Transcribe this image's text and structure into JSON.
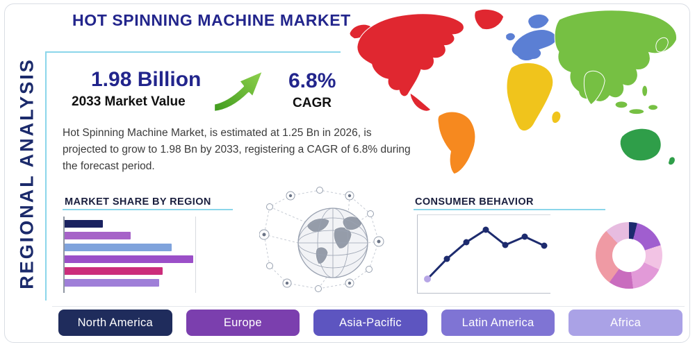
{
  "page": {
    "title": "HOT SPINNING MACHINE MARKET",
    "side_label": "REGIONAL ANALYSIS"
  },
  "stats": {
    "value": "1.98 Billion",
    "value_label": "2033 Market Value",
    "cagr": "6.8%",
    "cagr_label": "CAGR"
  },
  "description": "Hot Spinning Machine Market, is estimated at 1.25 Bn in 2026, is projected to grow to 1.98 Bn by 2033, registering a CAGR of 6.8% during the forecast period.",
  "sections": {
    "market_share": {
      "title": "MARKET SHARE BY REGION"
    },
    "consumer_behavior": {
      "title": "CONSUMER BEHAVIOR"
    }
  },
  "chart_data": [
    {
      "type": "bar",
      "title": "MARKET SHARE BY REGION",
      "orientation": "horizontal",
      "categories": [
        "",
        "",
        "",
        "",
        "",
        ""
      ],
      "values": [
        25,
        43,
        70,
        84,
        64,
        62
      ],
      "colors": [
        "#1a2260",
        "#a663c8",
        "#7fa3dc",
        "#9b4fc8",
        "#cb2d7b",
        "#9f7fd8"
      ],
      "axis_labels_visible": false,
      "grid": true
    },
    {
      "type": "line",
      "title": "CONSUMER BEHAVIOR",
      "x": [
        1,
        2,
        3,
        4,
        5,
        6,
        7
      ],
      "values": [
        14,
        43,
        67,
        85,
        63,
        75,
        62
      ],
      "color": "#1d2b6e",
      "first_point_color": "#b7a6e6",
      "axis_labels_visible": false,
      "markers": true
    },
    {
      "type": "pie",
      "subtype": "donut",
      "labels_visible": false,
      "segments": [
        {
          "color": "#1c2a6e",
          "value": 4
        },
        {
          "color": "#a05ecf",
          "value": 16
        },
        {
          "color": "#f2c3e4",
          "value": 12
        },
        {
          "color": "#e29ad8",
          "value": 16
        },
        {
          "color": "#c96cbe",
          "value": 12
        },
        {
          "color": "#ef9aa4",
          "value": 28
        },
        {
          "color": "#e7bce0",
          "value": 12
        }
      ]
    }
  ],
  "region_buttons": [
    {
      "label": "North America",
      "color": "#1f2c5c"
    },
    {
      "label": "Europe",
      "color": "#7b3fae"
    },
    {
      "label": "Asia-Pacific",
      "color": "#5d55c0"
    },
    {
      "label": "Latin America",
      "color": "#7f74d4"
    },
    {
      "label": "Africa",
      "color": "#aaa2e6"
    }
  ],
  "map": {
    "colors": {
      "north_america": "#e02730",
      "greenland": "#e02730",
      "south_america": "#f6891f",
      "europe": "#5b7fd4",
      "africa": "#f0c41c",
      "asia": "#76c043",
      "australia": "#2f9e49"
    }
  },
  "colors": {
    "accent_teal": "#8bd6ea",
    "navy": "#22258c",
    "heading": "#1a1f3e",
    "text": "#3a3a3a",
    "frame": "#d9dde4",
    "arrow_green_dark": "#3f9a1d",
    "arrow_green_light": "#90d24e"
  }
}
